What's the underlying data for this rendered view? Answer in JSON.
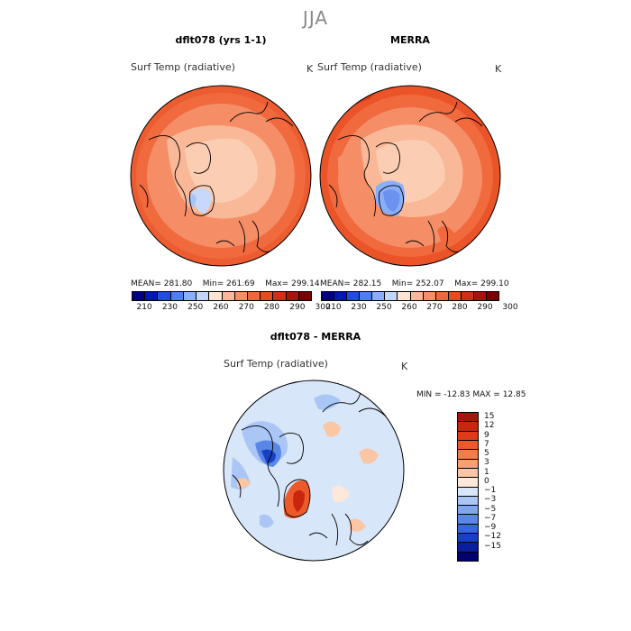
{
  "season": "JJA",
  "panels": [
    {
      "title": "dflt078 (yrs 1-1)",
      "variable": "Surf Temp (radiative)",
      "unit": "K",
      "mean_label": "MEAN=",
      "mean": "281.80",
      "min_label": "Min=",
      "min": "261.69",
      "max_label": "Max=",
      "max": "299.14"
    },
    {
      "title": "MERRA",
      "variable": "Surf Temp (radiative)",
      "unit": "K",
      "mean_label": "MEAN=",
      "mean": "282.15",
      "min_label": "Min=",
      "min": "252.07",
      "max_label": "Max=",
      "max": "299.10"
    }
  ],
  "colorbar_abs": {
    "ticks": [
      "210",
      "230",
      "250",
      "260",
      "270",
      "280",
      "290",
      "300"
    ],
    "colors": [
      "#00007f",
      "#0019b3",
      "#1e4ee0",
      "#4d7ef2",
      "#8aaef7",
      "#c0d6fb",
      "#fde3d2",
      "#f9b897",
      "#f58d66",
      "#f0673f",
      "#e64a22",
      "#d12f14",
      "#a8140a",
      "#7a0000"
    ]
  },
  "diff_panel": {
    "title": "dflt078 - MERRA",
    "variable": "Surf Temp (radiative)",
    "unit": "K",
    "min_label": "MIN =",
    "min": "-12.83",
    "max_label": "MAX =",
    "max": "12.85"
  },
  "colorbar_diff": {
    "ticks": [
      "15",
      "12",
      "9",
      "7",
      "5",
      "3",
      "1",
      "0",
      "−1",
      "−3",
      "−5",
      "−7",
      "−9",
      "−12",
      "−15"
    ],
    "colors": [
      "#a8140a",
      "#c9260f",
      "#e03a18",
      "#ec5a2c",
      "#f27c4a",
      "#f7a172",
      "#fbc6a4",
      "#fde8da",
      "#d8e6fa",
      "#a9c6f5",
      "#7fa6ef",
      "#5a86e8",
      "#3566df",
      "#1840c4",
      "#0a1fa0",
      "#00006e"
    ]
  }
}
